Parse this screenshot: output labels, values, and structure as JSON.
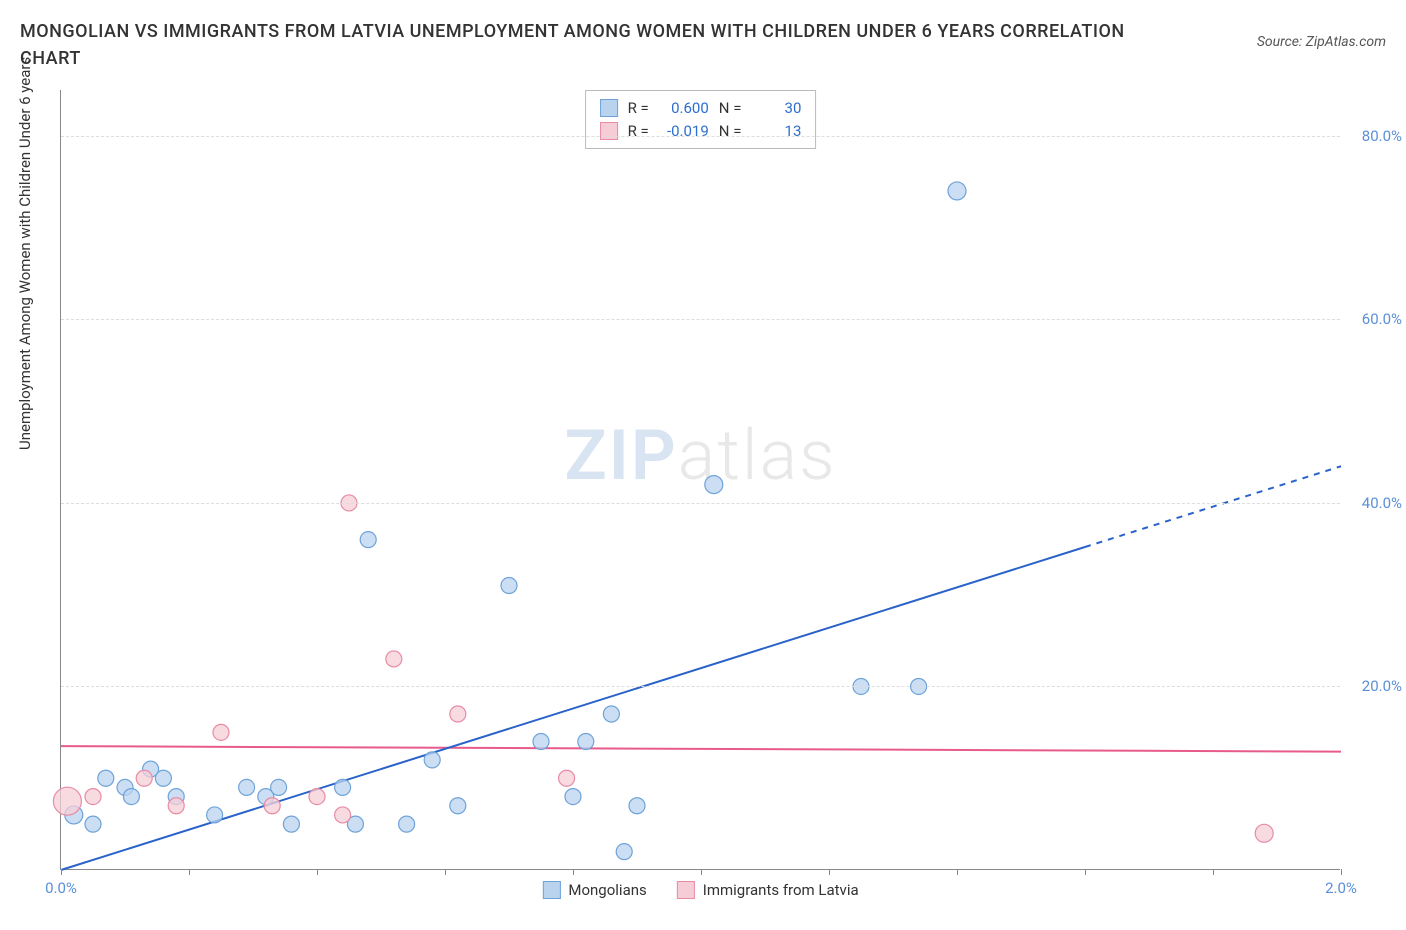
{
  "title": "MONGOLIAN VS IMMIGRANTS FROM LATVIA UNEMPLOYMENT AMONG WOMEN WITH CHILDREN UNDER 6 YEARS CORRELATION CHART",
  "source_label": "Source: ZipAtlas.com",
  "y_axis_label": "Unemployment Among Women with Children Under 6 years",
  "watermark": {
    "z": "ZIP",
    "rest": "atlas"
  },
  "chart": {
    "type": "scatter",
    "xlim": [
      0.0,
      2.0
    ],
    "ylim": [
      0.0,
      85.0
    ],
    "x_ticks": [
      0.0,
      0.2,
      0.4,
      0.6,
      0.8,
      1.0,
      1.2,
      1.4,
      1.6,
      1.8,
      2.0
    ],
    "x_tick_labels": {
      "0": "0.0%",
      "2": "2.0%"
    },
    "y_gridlines": [
      20.0,
      40.0,
      60.0,
      80.0
    ],
    "y_tick_labels": [
      "20.0%",
      "40.0%",
      "60.0%",
      "80.0%"
    ],
    "background_color": "#ffffff",
    "grid_color": "#dddddd",
    "axis_color": "#888888",
    "series": [
      {
        "name": "Mongolians",
        "color_fill": "#b9d3ef",
        "color_stroke": "#6fa3d8",
        "marker_size": 8,
        "trend": {
          "slope": 22.0,
          "intercept": 0.0,
          "color": "#2962c9",
          "width": 2,
          "dash_after_x": 1.6
        },
        "stats": {
          "R": "0.600",
          "N": "30"
        },
        "points": [
          {
            "x": 0.02,
            "y": 6.0,
            "r": 9
          },
          {
            "x": 0.05,
            "y": 5.0,
            "r": 8
          },
          {
            "x": 0.07,
            "y": 10.0,
            "r": 8
          },
          {
            "x": 0.1,
            "y": 9.0,
            "r": 8
          },
          {
            "x": 0.11,
            "y": 8.0,
            "r": 8
          },
          {
            "x": 0.14,
            "y": 11.0,
            "r": 8
          },
          {
            "x": 0.16,
            "y": 10.0,
            "r": 8
          },
          {
            "x": 0.18,
            "y": 8.0,
            "r": 8
          },
          {
            "x": 0.24,
            "y": 6.0,
            "r": 8
          },
          {
            "x": 0.29,
            "y": 9.0,
            "r": 8
          },
          {
            "x": 0.32,
            "y": 8.0,
            "r": 8
          },
          {
            "x": 0.34,
            "y": 9.0,
            "r": 8
          },
          {
            "x": 0.36,
            "y": 5.0,
            "r": 8
          },
          {
            "x": 0.44,
            "y": 9.0,
            "r": 8
          },
          {
            "x": 0.46,
            "y": 5.0,
            "r": 8
          },
          {
            "x": 0.48,
            "y": 36.0,
            "r": 8
          },
          {
            "x": 0.54,
            "y": 5.0,
            "r": 8
          },
          {
            "x": 0.58,
            "y": 12.0,
            "r": 8
          },
          {
            "x": 0.62,
            "y": 7.0,
            "r": 8
          },
          {
            "x": 0.7,
            "y": 31.0,
            "r": 8
          },
          {
            "x": 0.75,
            "y": 14.0,
            "r": 8
          },
          {
            "x": 0.8,
            "y": 8.0,
            "r": 8
          },
          {
            "x": 0.82,
            "y": 14.0,
            "r": 8
          },
          {
            "x": 0.86,
            "y": 17.0,
            "r": 8
          },
          {
            "x": 0.88,
            "y": 2.0,
            "r": 8
          },
          {
            "x": 0.9,
            "y": 7.0,
            "r": 8
          },
          {
            "x": 1.02,
            "y": 42.0,
            "r": 9
          },
          {
            "x": 1.25,
            "y": 20.0,
            "r": 8
          },
          {
            "x": 1.34,
            "y": 20.0,
            "r": 8
          },
          {
            "x": 1.4,
            "y": 74.0,
            "r": 9
          }
        ]
      },
      {
        "name": "Immigrants from Latvia",
        "color_fill": "#f6cdd7",
        "color_stroke": "#e88ba5",
        "marker_size": 8,
        "trend": {
          "slope": -0.3,
          "intercept": 13.5,
          "color": "#e75a8b",
          "width": 2,
          "dash_after_x": 2.0
        },
        "stats": {
          "R": "-0.019",
          "N": "13"
        },
        "points": [
          {
            "x": 0.01,
            "y": 7.5,
            "r": 14
          },
          {
            "x": 0.05,
            "y": 8.0,
            "r": 8
          },
          {
            "x": 0.13,
            "y": 10.0,
            "r": 8
          },
          {
            "x": 0.18,
            "y": 7.0,
            "r": 8
          },
          {
            "x": 0.25,
            "y": 15.0,
            "r": 8
          },
          {
            "x": 0.33,
            "y": 7.0,
            "r": 8
          },
          {
            "x": 0.4,
            "y": 8.0,
            "r": 8
          },
          {
            "x": 0.45,
            "y": 40.0,
            "r": 8
          },
          {
            "x": 0.44,
            "y": 6.0,
            "r": 8
          },
          {
            "x": 0.52,
            "y": 23.0,
            "r": 8
          },
          {
            "x": 0.62,
            "y": 17.0,
            "r": 8
          },
          {
            "x": 0.79,
            "y": 10.0,
            "r": 8
          },
          {
            "x": 1.88,
            "y": 4.0,
            "r": 9
          }
        ]
      }
    ]
  },
  "legend_bottom": [
    {
      "label": "Mongolians",
      "fill": "#b9d3ef",
      "stroke": "#6fa3d8"
    },
    {
      "label": "Immigrants from Latvia",
      "fill": "#f6cdd7",
      "stroke": "#e88ba5"
    }
  ],
  "stats_box": {
    "rows": [
      {
        "fill": "#b9d3ef",
        "stroke": "#6fa3d8",
        "r_label": "R =",
        "r_val": "0.600",
        "n_label": "N =",
        "n_val": "30",
        "val_color": "#2d6fd0"
      },
      {
        "fill": "#f6cdd7",
        "stroke": "#e88ba5",
        "r_label": "R =",
        "r_val": "-0.019",
        "n_label": "N =",
        "n_val": "13",
        "val_color": "#2d6fd0"
      }
    ]
  }
}
